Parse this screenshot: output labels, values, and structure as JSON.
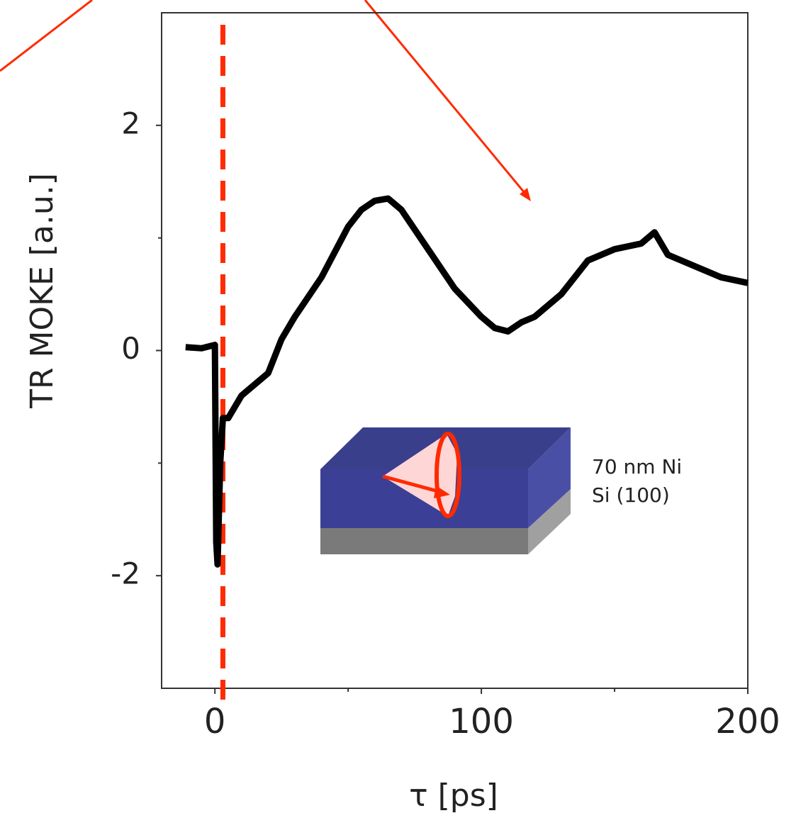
{
  "chart_data": {
    "type": "line",
    "x_label": "τ [ps]",
    "y_label": "TR MOKE [a.u.]",
    "x": [
      -11,
      -5,
      0,
      0.5,
      1,
      2,
      3,
      5,
      10,
      20,
      25,
      30,
      40,
      50,
      55,
      60,
      65,
      70,
      80,
      90,
      100,
      105,
      110,
      115,
      120,
      130,
      140,
      150,
      160,
      165,
      170,
      180,
      190,
      200
    ],
    "series": [
      {
        "color": "#000000",
        "values": [
          0.03,
          0.02,
          0.05,
          -1.7,
          -1.9,
          -1.0,
          -0.6,
          -0.6,
          -0.4,
          -0.2,
          0.1,
          0.3,
          0.65,
          1.1,
          1.25,
          1.33,
          1.35,
          1.25,
          0.9,
          0.55,
          0.3,
          0.2,
          0.17,
          0.25,
          0.3,
          0.5,
          0.8,
          0.9,
          0.95,
          1.05,
          0.85,
          0.75,
          0.65,
          0.6
        ]
      }
    ],
    "xlim": [
      -20,
      200
    ],
    "xticks": [
      0,
      100,
      200
    ],
    "minor_xticks": [
      50,
      150
    ],
    "ylim": [
      -3,
      3
    ],
    "yticks": [
      -2,
      0,
      2
    ],
    "minor_yticks": [
      -1,
      1
    ],
    "marker_line": {
      "x": 3,
      "color": "#ff2a00"
    },
    "inset_labels": [
      "70 nm Ni",
      "Si (100)"
    ]
  }
}
